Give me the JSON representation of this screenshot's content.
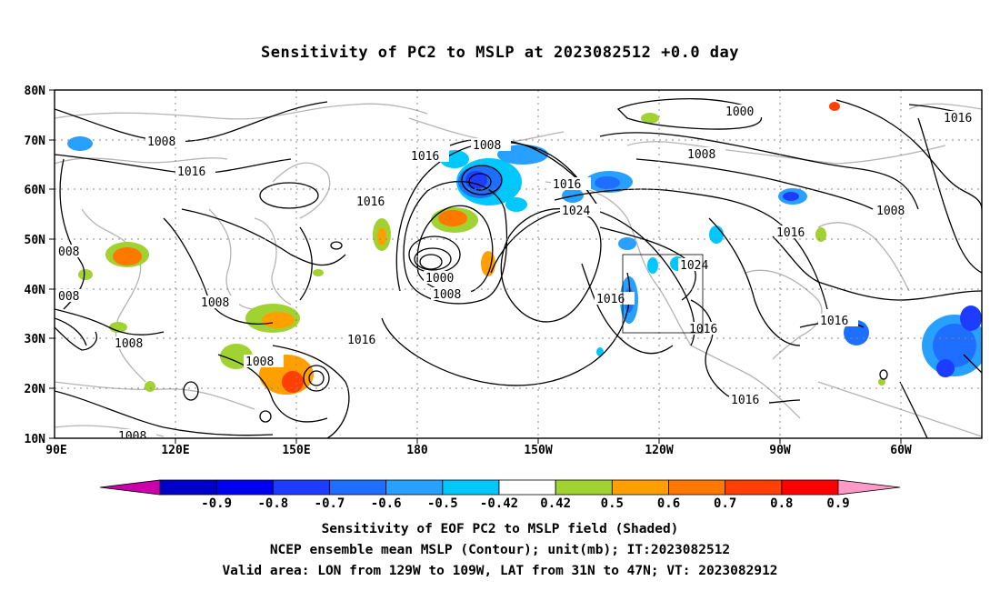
{
  "title": "Sensitivity of PC2 to MSLP at 2023082512 +0.0 day",
  "map": {
    "lat_labels": [
      "80N",
      "70N",
      "60N",
      "50N",
      "40N",
      "30N",
      "20N",
      "10N"
    ],
    "lon_labels": [
      "90E",
      "120E",
      "150E",
      "180",
      "150W",
      "120W",
      "90W",
      "60W"
    ],
    "contour_labels": [
      {
        "text": "1008"
      },
      {
        "text": "1016"
      },
      {
        "text": "008"
      },
      {
        "text": "008"
      },
      {
        "text": "1008"
      },
      {
        "text": "1008"
      },
      {
        "text": "1008"
      },
      {
        "text": "1008"
      },
      {
        "text": "1016"
      },
      {
        "text": "1016"
      },
      {
        "text": "1008"
      },
      {
        "text": "1016"
      },
      {
        "text": "1000"
      },
      {
        "text": "1008"
      },
      {
        "text": "1016"
      },
      {
        "text": "1024"
      },
      {
        "text": "1000"
      },
      {
        "text": "1008"
      },
      {
        "text": "1016"
      },
      {
        "text": "1024"
      },
      {
        "text": "1016"
      },
      {
        "text": "1016"
      },
      {
        "text": "1016"
      },
      {
        "text": "1008"
      },
      {
        "text": "1016"
      },
      {
        "text": "1016"
      }
    ],
    "valid_area_box": {
      "lon_from": "129W",
      "lon_to": "109W",
      "lat_from": "31N",
      "lat_to": "47N"
    }
  },
  "colorbar": {
    "labels": [
      "-0.9",
      "-0.8",
      "-0.7",
      "-0.6",
      "-0.5",
      "-0.42",
      "0.42",
      "0.5",
      "0.6",
      "0.7",
      "0.8",
      "0.9"
    ],
    "colors": [
      "#cc00aa",
      "#0000c8",
      "#0000f0",
      "#1e3cff",
      "#1e6eff",
      "#28a0ff",
      "#00c8ff",
      "#ffffff",
      "#a0d232",
      "#ffa000",
      "#ff7800",
      "#ff4000",
      "#ff0000",
      "#ff99c8"
    ]
  },
  "captions": [
    "Sensitivity of EOF PC2 to MSLP field (Shaded)",
    "NCEP ensemble mean MSLP (Contour); unit(mb); IT:2023082512",
    "Valid area: LON from 129W to 109W, LAT from 31N to 47N; VT: 2023082912"
  ],
  "palette": {
    "green": "#a0d232",
    "orange": "#ffa000",
    "orangered": "#ff7800",
    "red": "#ff4000",
    "cyan": "#00c8ff",
    "lightblue": "#28a0ff",
    "blue": "#1e6eff",
    "darkblue": "#1e3cff",
    "coast": "#b4b4b4",
    "contour": "#000000"
  }
}
